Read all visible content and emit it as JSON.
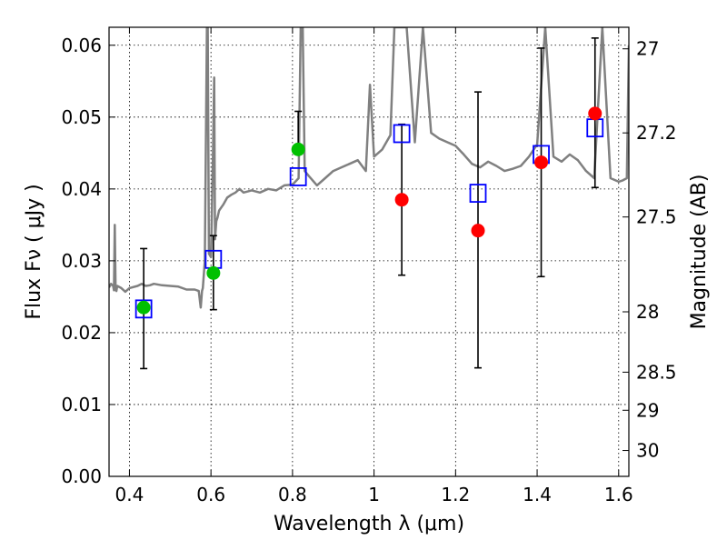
{
  "chart_data": {
    "type": "scatter",
    "xlabel": "Wavelength  λ (μm)",
    "ylabel": "Flux  Fν  ( μJy )",
    "ylabel_right": "Magnitude (AB)",
    "xlim": [
      0.35,
      1.625
    ],
    "ylim": [
      0.0,
      0.0625
    ],
    "grid": true,
    "x_ticks": [
      0.4,
      0.6,
      0.8,
      1.0,
      1.2,
      1.4,
      1.6
    ],
    "x_tick_labels": [
      "0.4",
      "0.6",
      "0.8",
      "1",
      "1.2",
      "1.4",
      "1.6"
    ],
    "y_ticks": [
      0.0,
      0.01,
      0.02,
      0.03,
      0.04,
      0.05,
      0.06
    ],
    "y_tick_labels": [
      "0.00",
      "0.01",
      "0.02",
      "0.03",
      "0.04",
      "0.05",
      "0.06"
    ],
    "right_ticks": [
      {
        "flux": 0.0595,
        "label": "27"
      },
      {
        "flux": 0.0478,
        "label": "27.2"
      },
      {
        "flux": 0.0361,
        "label": "27.5"
      },
      {
        "flux": 0.0229,
        "label": "28"
      },
      {
        "flux": 0.0145,
        "label": "28.5"
      },
      {
        "flux": 0.0092,
        "label": "29"
      },
      {
        "flux": 0.0036,
        "label": "30"
      }
    ],
    "series": [
      {
        "kind": "model-spectrum",
        "color": "#808080",
        "x": [
          0.35,
          0.355,
          0.36,
          0.362,
          0.364,
          0.366,
          0.368,
          0.37,
          0.38,
          0.39,
          0.4,
          0.42,
          0.43,
          0.44,
          0.45,
          0.46,
          0.48,
          0.5,
          0.52,
          0.54,
          0.56,
          0.57,
          0.575,
          0.578,
          0.58,
          0.585,
          0.59,
          0.592,
          0.595,
          0.6,
          0.605,
          0.608,
          0.61,
          0.613,
          0.616,
          0.62,
          0.63,
          0.64,
          0.65,
          0.66,
          0.67,
          0.68,
          0.7,
          0.72,
          0.74,
          0.76,
          0.78,
          0.8,
          0.815,
          0.82,
          0.825,
          0.83,
          0.84,
          0.86,
          0.88,
          0.9,
          0.92,
          0.94,
          0.96,
          0.98,
          0.99,
          1.0,
          1.02,
          1.04,
          1.05,
          1.06,
          1.08,
          1.1,
          1.12,
          1.14,
          1.16,
          1.18,
          1.2,
          1.22,
          1.24,
          1.26,
          1.28,
          1.3,
          1.32,
          1.34,
          1.36,
          1.38,
          1.4,
          1.42,
          1.44,
          1.46,
          1.48,
          1.5,
          1.52,
          1.54,
          1.56,
          1.58,
          1.6,
          1.61,
          1.62,
          1.625
        ],
        "y": [
          0.0263,
          0.0268,
          0.0265,
          0.0259,
          0.035,
          0.026,
          0.0258,
          0.0265,
          0.0262,
          0.0257,
          0.0262,
          0.0265,
          0.0268,
          0.0265,
          0.0266,
          0.0268,
          0.0266,
          0.0265,
          0.0264,
          0.026,
          0.026,
          0.0258,
          0.0235,
          0.0258,
          0.0262,
          0.03,
          0.0625,
          0.0625,
          0.031,
          0.0305,
          0.045,
          0.0555,
          0.033,
          0.0355,
          0.036,
          0.037,
          0.0378,
          0.0388,
          0.0392,
          0.0395,
          0.04,
          0.0395,
          0.0398,
          0.0395,
          0.04,
          0.0398,
          0.0405,
          0.0406,
          0.0415,
          0.0625,
          0.0625,
          0.0425,
          0.0418,
          0.0405,
          0.0415,
          0.0425,
          0.043,
          0.0435,
          0.044,
          0.0425,
          0.0545,
          0.0445,
          0.0455,
          0.0475,
          0.0625,
          0.0625,
          0.0625,
          0.0465,
          0.0625,
          0.0478,
          0.047,
          0.0465,
          0.046,
          0.0448,
          0.0435,
          0.043,
          0.0438,
          0.0432,
          0.0425,
          0.0428,
          0.0432,
          0.0445,
          0.0462,
          0.0625,
          0.0445,
          0.0438,
          0.0448,
          0.044,
          0.0425,
          0.0415,
          0.0625,
          0.0415,
          0.041,
          0.0412,
          0.0415,
          0.06
        ]
      },
      {
        "kind": "model-photometry",
        "marker": "open-square",
        "color": "#0000ff",
        "x": [
          0.435,
          0.606,
          0.814,
          1.068,
          1.255,
          1.41,
          1.542
        ],
        "y": [
          0.0233,
          0.0302,
          0.0417,
          0.0477,
          0.0394,
          0.0448,
          0.0485
        ]
      },
      {
        "kind": "photometry-optical",
        "marker": "filled-circle",
        "color": "#00c000",
        "x": [
          0.435,
          0.606,
          0.814
        ],
        "y": [
          0.0235,
          0.0283,
          0.0455
        ]
      },
      {
        "kind": "photometry-nir",
        "marker": "filled-circle",
        "color": "#ff0000",
        "x": [
          1.068,
          1.255,
          1.41,
          1.542
        ],
        "y": [
          0.0385,
          0.0342,
          0.0437,
          0.0505
        ]
      }
    ],
    "errorbars": [
      {
        "x": 0.435,
        "low": 0.015,
        "high": 0.0317
      },
      {
        "x": 0.606,
        "low": 0.0232,
        "high": 0.0335
      },
      {
        "x": 0.814,
        "low": 0.0455,
        "high": 0.0508
      },
      {
        "x": 1.068,
        "low": 0.028,
        "high": 0.049
      },
      {
        "x": 1.255,
        "low": 0.0151,
        "high": 0.0535
      },
      {
        "x": 1.41,
        "low": 0.0278,
        "high": 0.0596
      },
      {
        "x": 1.542,
        "low": 0.0402,
        "high": 0.061
      }
    ]
  }
}
